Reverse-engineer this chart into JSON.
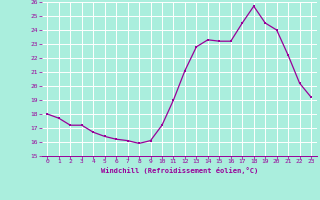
{
  "hours": [
    0,
    1,
    2,
    3,
    4,
    5,
    6,
    7,
    8,
    9,
    10,
    11,
    12,
    13,
    14,
    15,
    16,
    17,
    18,
    19,
    20,
    21,
    22,
    23
  ],
  "windchill": [
    18.0,
    17.7,
    17.2,
    17.2,
    16.7,
    16.4,
    16.2,
    16.1,
    15.9,
    16.1,
    17.2,
    19.0,
    21.1,
    22.8,
    23.3,
    23.2,
    23.2,
    24.5,
    25.7,
    24.5,
    24.0,
    22.2,
    20.2,
    19.2
  ],
  "line_color": "#990099",
  "marker_color": "#990099",
  "bg_color": "#aaeedd",
  "grid_color": "#bbdddd",
  "tick_color": "#990099",
  "xlabel": "Windchill (Refroidissement éolien,°C)",
  "xlabel_color": "#990099",
  "ylim": [
    15,
    26
  ],
  "yticks": [
    15,
    16,
    17,
    18,
    19,
    20,
    21,
    22,
    23,
    24,
    25,
    26
  ],
  "xticks": [
    0,
    1,
    2,
    3,
    4,
    5,
    6,
    7,
    8,
    9,
    10,
    11,
    12,
    13,
    14,
    15,
    16,
    17,
    18,
    19,
    20,
    21,
    22,
    23
  ],
  "marker_size": 2.0,
  "line_width": 0.9
}
